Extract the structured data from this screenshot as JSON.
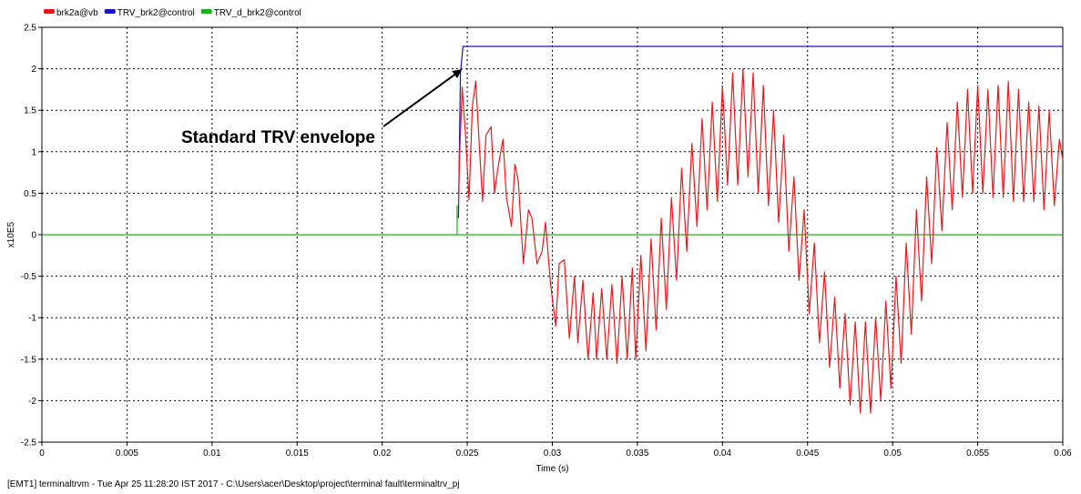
{
  "status_bar": {
    "text": "[EMT1] terminaltrvm - Tue Apr 25 11:28:20 IST 2017 - C:\\Users\\acer\\Desktop\\project\\terminal fault\\terminaltrv_pj"
  },
  "chart_data": {
    "type": "line",
    "title": "",
    "xlabel": "Time (s)",
    "ylabel": "x10E5",
    "xlim": [
      0,
      0.06
    ],
    "ylim": [
      -2.5,
      2.5
    ],
    "grid": true,
    "legend_position": "top-left",
    "xticks": [
      0,
      0.005,
      0.01,
      0.015,
      0.02,
      0.025,
      0.03,
      0.035,
      0.04,
      0.045,
      0.05,
      0.055,
      0.06
    ],
    "xtick_labels": [
      "0",
      "0.005",
      "0.01",
      "0.015",
      "0.02",
      "0.025",
      "0.03",
      "0.035",
      "0.04",
      "0.045",
      "0.05",
      "0.055",
      "0.06"
    ],
    "yticks": [
      2.5,
      2,
      1.5,
      1,
      0.5,
      0,
      -0.5,
      -1,
      -1.5,
      -2,
      -2.5
    ],
    "ytick_labels": [
      "2.5",
      "2",
      "1.5",
      "1",
      "0.5",
      "0",
      "-0.5",
      "-1",
      "-1.5",
      "-2",
      "-2.5"
    ],
    "annotation": {
      "text": "Standard TRV envelope",
      "arrow_to": [
        0.0246,
        1.98
      ]
    },
    "series": [
      {
        "name": "brk2a@vb",
        "color": "#e8191e",
        "points": [
          [
            0.02448,
            0.36
          ],
          [
            0.02455,
            0.95
          ],
          [
            0.0247,
            1.78
          ],
          [
            0.0249,
            1.2
          ],
          [
            0.0251,
            0.42
          ],
          [
            0.0253,
            1.55
          ],
          [
            0.0255,
            1.85
          ],
          [
            0.0257,
            1.1
          ],
          [
            0.0259,
            0.4
          ],
          [
            0.0261,
            1.2
          ],
          [
            0.0264,
            1.3
          ],
          [
            0.0266,
            0.5
          ],
          [
            0.0268,
            0.8
          ],
          [
            0.0271,
            1.15
          ],
          [
            0.0273,
            0.45
          ],
          [
            0.0276,
            0.1
          ],
          [
            0.0278,
            0.85
          ],
          [
            0.028,
            0.65
          ],
          [
            0.0283,
            -0.35
          ],
          [
            0.0286,
            0.3
          ],
          [
            0.0288,
            0.2
          ],
          [
            0.0291,
            -0.35
          ],
          [
            0.0294,
            -0.2
          ],
          [
            0.0296,
            0.15
          ],
          [
            0.0299,
            -0.6
          ],
          [
            0.0302,
            -1.1
          ],
          [
            0.0304,
            -0.35
          ],
          [
            0.0307,
            -0.3
          ],
          [
            0.031,
            -1.25
          ],
          [
            0.0313,
            -0.5
          ],
          [
            0.0315,
            -1.3
          ],
          [
            0.0318,
            -0.55
          ],
          [
            0.0321,
            -1.5
          ],
          [
            0.0324,
            -0.7
          ],
          [
            0.0326,
            -1.5
          ],
          [
            0.0329,
            -0.65
          ],
          [
            0.0332,
            -1.5
          ],
          [
            0.0335,
            -0.6
          ],
          [
            0.0338,
            -1.55
          ],
          [
            0.0341,
            -0.5
          ],
          [
            0.0344,
            -1.5
          ],
          [
            0.0347,
            -0.4
          ],
          [
            0.0349,
            -1.5
          ],
          [
            0.0352,
            -0.25
          ],
          [
            0.0355,
            -1.4
          ],
          [
            0.0358,
            -0.05
          ],
          [
            0.0361,
            -1.15
          ],
          [
            0.0364,
            0.2
          ],
          [
            0.0367,
            -0.9
          ],
          [
            0.037,
            0.45
          ],
          [
            0.0373,
            -0.55
          ],
          [
            0.0376,
            0.8
          ],
          [
            0.0379,
            -0.2
          ],
          [
            0.0382,
            1.1
          ],
          [
            0.0385,
            0.1
          ],
          [
            0.0388,
            1.4
          ],
          [
            0.0391,
            0.3
          ],
          [
            0.0394,
            1.6
          ],
          [
            0.0397,
            0.4
          ],
          [
            0.04,
            1.8
          ],
          [
            0.0403,
            0.6
          ],
          [
            0.0406,
            1.95
          ],
          [
            0.0409,
            0.6
          ],
          [
            0.0412,
            2.0
          ],
          [
            0.0415,
            0.7
          ],
          [
            0.0418,
            1.95
          ],
          [
            0.0421,
            0.5
          ],
          [
            0.0424,
            1.8
          ],
          [
            0.0427,
            0.35
          ],
          [
            0.043,
            1.5
          ],
          [
            0.0433,
            0.15
          ],
          [
            0.0436,
            1.2
          ],
          [
            0.0439,
            -0.2
          ],
          [
            0.0442,
            0.7
          ],
          [
            0.0445,
            -0.55
          ],
          [
            0.0448,
            0.3
          ],
          [
            0.0451,
            -0.95
          ],
          [
            0.0454,
            -0.1
          ],
          [
            0.0457,
            -1.3
          ],
          [
            0.046,
            -0.45
          ],
          [
            0.0463,
            -1.6
          ],
          [
            0.0466,
            -0.75
          ],
          [
            0.0469,
            -1.85
          ],
          [
            0.0472,
            -0.95
          ],
          [
            0.0475,
            -2.05
          ],
          [
            0.0478,
            -1.05
          ],
          [
            0.0481,
            -2.15
          ],
          [
            0.0484,
            -1.05
          ],
          [
            0.0487,
            -2.15
          ],
          [
            0.049,
            -1.0
          ],
          [
            0.0493,
            -2.0
          ],
          [
            0.0496,
            -0.8
          ],
          [
            0.0499,
            -1.85
          ],
          [
            0.0502,
            -0.5
          ],
          [
            0.0505,
            -1.55
          ],
          [
            0.0508,
            -0.1
          ],
          [
            0.0511,
            -1.2
          ],
          [
            0.0514,
            0.3
          ],
          [
            0.0517,
            -0.8
          ],
          [
            0.052,
            0.7
          ],
          [
            0.0523,
            -0.35
          ],
          [
            0.0526,
            1.05
          ],
          [
            0.0529,
            0.05
          ],
          [
            0.0532,
            1.35
          ],
          [
            0.0535,
            0.3
          ],
          [
            0.0538,
            1.6
          ],
          [
            0.0541,
            0.45
          ],
          [
            0.0544,
            1.75
          ],
          [
            0.0547,
            0.5
          ],
          [
            0.055,
            1.8
          ],
          [
            0.0553,
            0.5
          ],
          [
            0.0556,
            1.75
          ],
          [
            0.0559,
            0.45
          ],
          [
            0.0562,
            1.8
          ],
          [
            0.0565,
            0.45
          ],
          [
            0.0568,
            1.85
          ],
          [
            0.0571,
            0.4
          ],
          [
            0.0574,
            1.75
          ],
          [
            0.0577,
            0.4
          ],
          [
            0.058,
            1.6
          ],
          [
            0.0583,
            0.4
          ],
          [
            0.0586,
            1.55
          ],
          [
            0.0589,
            0.3
          ],
          [
            0.0592,
            1.5
          ],
          [
            0.0595,
            0.35
          ],
          [
            0.0598,
            1.15
          ],
          [
            0.06,
            0.9
          ]
        ]
      },
      {
        "name": "TRV_brk2@control",
        "color": "#1515c8",
        "points": [
          [
            0.02448,
            0.2
          ],
          [
            0.0246,
            1.95
          ],
          [
            0.02475,
            2.27
          ],
          [
            0.06,
            2.27
          ]
        ]
      },
      {
        "name": "TRV_d_brk2@control",
        "color": "#17b517",
        "points": [
          [
            0,
            0
          ],
          [
            0.0244,
            0
          ],
          [
            0.0244,
            0.35
          ],
          [
            0.0244,
            0
          ],
          [
            0.06,
            0
          ]
        ]
      }
    ]
  }
}
